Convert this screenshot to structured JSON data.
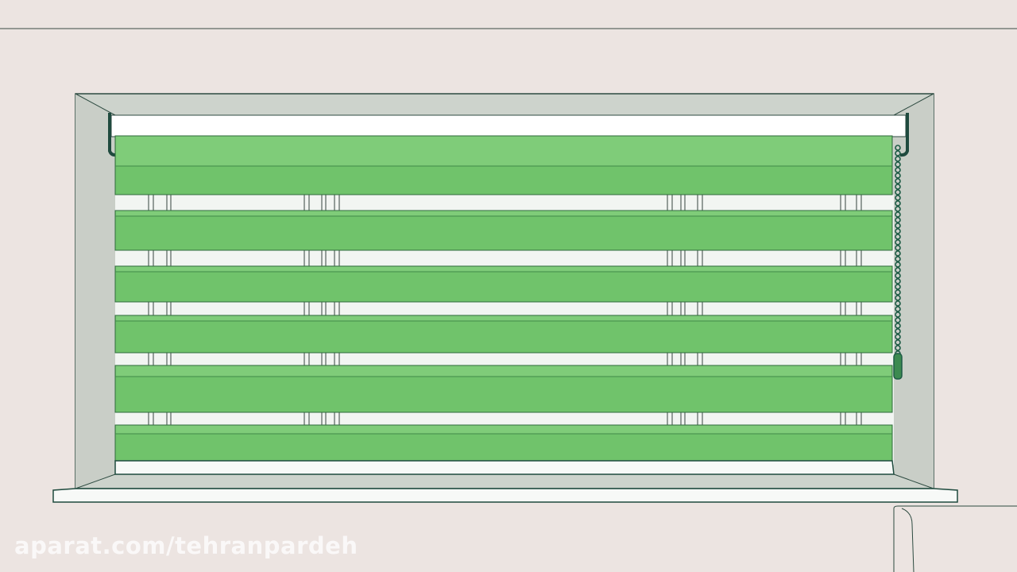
{
  "scene": {
    "subject": "zebra-roller-blind",
    "colors": {
      "wall": "#ece4e1",
      "frame": "#cdd3cc",
      "slat": "#70c36b",
      "slat_light": "#7fcc79",
      "outline": "#1f4a3e",
      "chain": "#1d5b45",
      "sheer": "#f2f5f2"
    }
  },
  "watermark": {
    "text": "aparat.com/tehranpardeh"
  }
}
